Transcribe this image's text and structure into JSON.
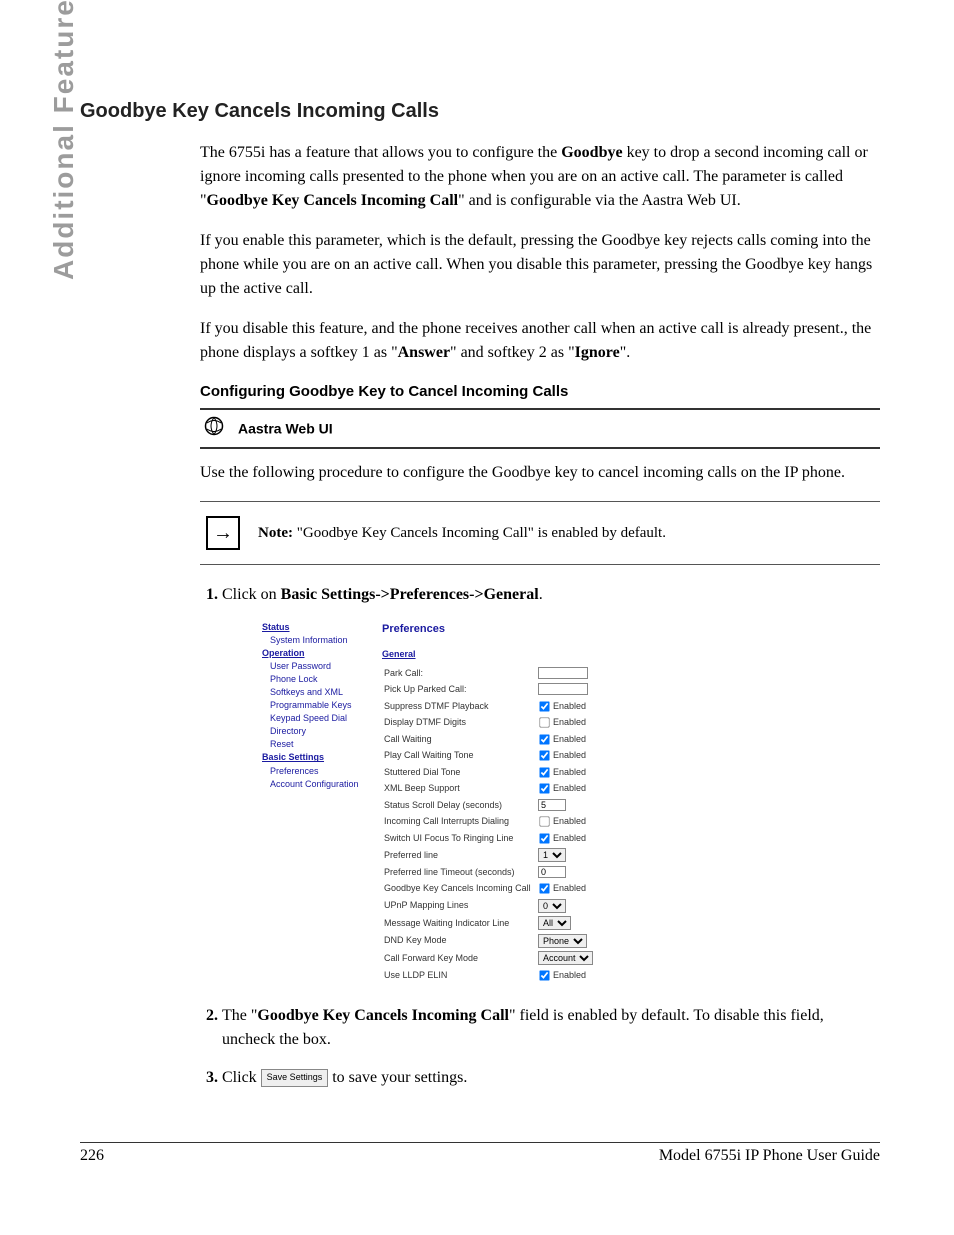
{
  "side_label": "Additional Features",
  "heading": "Goodbye Key Cancels Incoming Calls",
  "para1_a": "The 6755i has a feature that allows you to configure the ",
  "para1_b": "Goodbye",
  "para1_c": " key to drop a second incoming call or ignore incoming calls presented to the phone when you are on an active call. The parameter is called \"",
  "para1_d": "Goodbye Key Cancels Incoming Call",
  "para1_e": "\" and is configurable via the Aastra Web UI.",
  "para2": "If you enable this parameter, which is the default, pressing the Goodbye key rejects calls coming into the phone while you are on an active call. When you disable this parameter, pressing the Goodbye key hangs up the active call.",
  "para3_a": "If you disable this feature, and the phone receives another call when an active call is already present., the phone displays a softkey 1 as \"",
  "para3_b": "Answer",
  "para3_c": "\" and softkey 2 as \"",
  "para3_d": "Ignore",
  "para3_e": "\".",
  "sub_heading": "Configuring Goodbye Key to Cancel Incoming Calls",
  "web_ui_label": "Aastra Web UI",
  "para4": "Use the following procedure to configure the Goodbye key to cancel incoming calls on the IP phone.",
  "note_label": "Note:",
  "note_text": " \"Goodbye Key Cancels Incoming Call\" is enabled by default.",
  "step1_a": "Click on ",
  "step1_b": "Basic Settings->Preferences->General",
  "step1_c": ".",
  "step2_a": "The \"",
  "step2_b": "Goodbye Key Cancels Incoming Call",
  "step2_c": "\" field is enabled by default. To disable this field, uncheck the box.",
  "step3_a": "Click ",
  "step3_btn": "Save Settings",
  "step3_b": " to save your settings.",
  "footer_page": "226",
  "footer_title": "Model 6755i IP Phone User Guide",
  "screenshot": {
    "nav": {
      "status": "Status",
      "status_items": [
        "System Information"
      ],
      "operation": "Operation",
      "operation_items": [
        "User Password",
        "Phone Lock",
        "Softkeys and XML",
        "Programmable Keys",
        "Keypad Speed Dial",
        "Directory",
        "Reset"
      ],
      "basic": "Basic Settings",
      "basic_items": [
        "Preferences",
        "Account Configuration"
      ]
    },
    "main": {
      "title": "Preferences",
      "section": "General",
      "rows": [
        {
          "label": "Park Call:",
          "ctrl": "text",
          "value": ""
        },
        {
          "label": "Pick Up Parked Call:",
          "ctrl": "text",
          "value": ""
        },
        {
          "label": "Suppress DTMF Playback",
          "ctrl": "check",
          "checked": true,
          "cblabel": "Enabled"
        },
        {
          "label": "Display DTMF Digits",
          "ctrl": "check",
          "checked": false,
          "cblabel": "Enabled"
        },
        {
          "label": "Call Waiting",
          "ctrl": "check",
          "checked": true,
          "cblabel": "Enabled"
        },
        {
          "label": "Play Call Waiting Tone",
          "ctrl": "check",
          "checked": true,
          "cblabel": "Enabled"
        },
        {
          "label": "Stuttered Dial Tone",
          "ctrl": "check",
          "checked": true,
          "cblabel": "Enabled"
        },
        {
          "label": "XML Beep Support",
          "ctrl": "check",
          "checked": true,
          "cblabel": "Enabled"
        },
        {
          "label": "Status Scroll Delay (seconds)",
          "ctrl": "text-short",
          "value": "5"
        },
        {
          "label": "Incoming Call Interrupts Dialing",
          "ctrl": "check",
          "checked": false,
          "cblabel": "Enabled"
        },
        {
          "label": "Switch UI Focus To Ringing Line",
          "ctrl": "check",
          "checked": true,
          "cblabel": "Enabled"
        },
        {
          "label": "Preferred line",
          "ctrl": "select",
          "value": "1"
        },
        {
          "label": "Preferred line Timeout (seconds)",
          "ctrl": "text-short",
          "value": "0"
        },
        {
          "label": "Goodbye Key Cancels Incoming Call",
          "ctrl": "check",
          "checked": true,
          "cblabel": "Enabled"
        },
        {
          "label": "UPnP Mapping Lines",
          "ctrl": "select",
          "value": "0"
        },
        {
          "label": "Message Waiting Indicator Line",
          "ctrl": "select",
          "value": "All"
        },
        {
          "label": "DND Key Mode",
          "ctrl": "select",
          "value": "Phone"
        },
        {
          "label": "Call Forward Key Mode",
          "ctrl": "select",
          "value": "Account"
        },
        {
          "label": "Use LLDP ELIN",
          "ctrl": "check",
          "checked": true,
          "cblabel": "Enabled"
        }
      ]
    }
  }
}
